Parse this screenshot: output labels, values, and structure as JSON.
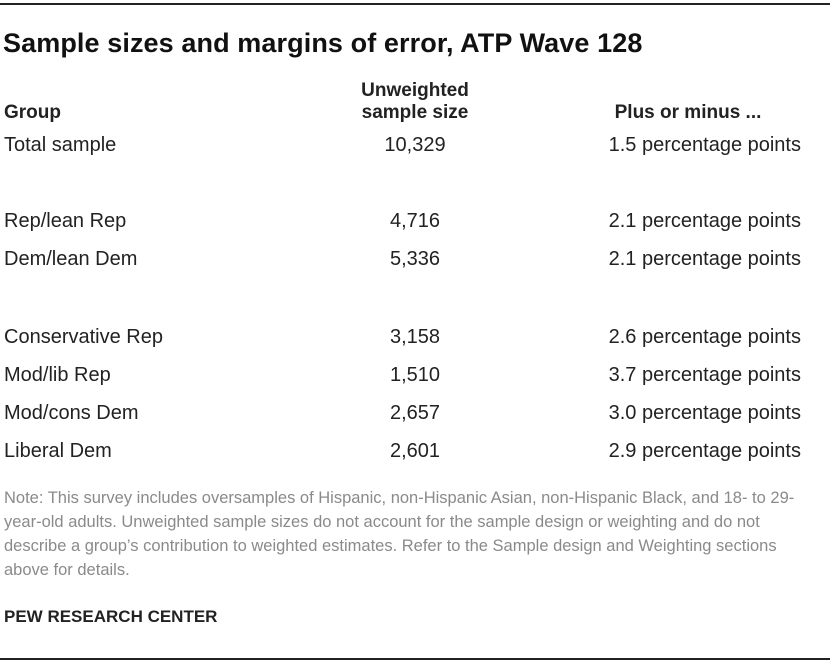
{
  "title": "Sample sizes and margins of error, ATP Wave 128",
  "headers": {
    "group": "Group",
    "sample_size_line1": "Unweighted",
    "sample_size_line2": "sample size",
    "moe": "Plus or minus ..."
  },
  "rows": [
    {
      "group": "Total sample",
      "size": "10,329",
      "moe": "1.5 percentage points"
    },
    {
      "group": "Rep/lean Rep",
      "size": "4,716",
      "moe": "2.1 percentage points"
    },
    {
      "group": "Dem/lean Dem",
      "size": "5,336",
      "moe": "2.1 percentage points"
    },
    {
      "group": "Conservative Rep",
      "size": "3,158",
      "moe": "2.6 percentage points"
    },
    {
      "group": "Mod/lib Rep",
      "size": "1,510",
      "moe": "3.7 percentage points"
    },
    {
      "group": "Mod/cons Dem",
      "size": "2,657",
      "moe": "3.0 percentage points"
    },
    {
      "group": "Liberal Dem",
      "size": "2,601",
      "moe": "2.9 percentage points"
    }
  ],
  "note": "Note: This survey includes oversamples of Hispanic, non-Hispanic Asian, non-Hispanic Black, and 18- to 29-year-old adults. Unweighted sample sizes do not account for the sample design or weighting and do not describe a group’s contribution to weighted estimates. Refer to the Sample design and Weighting sections above for details.",
  "source": "PEW RESEARCH CENTER"
}
